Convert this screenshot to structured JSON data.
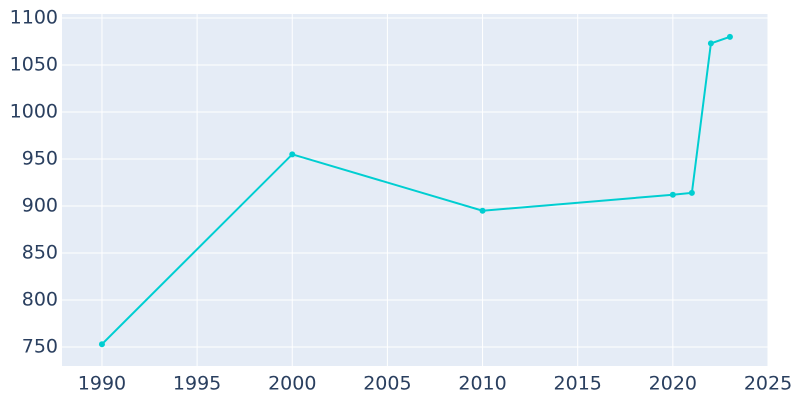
{
  "chart_data": {
    "type": "line",
    "x": [
      1990,
      2000,
      2010,
      2020,
      2021,
      2022,
      2023
    ],
    "series": [
      {
        "color": "#00ced1",
        "values": [
          753,
          955,
          895,
          912,
          914,
          1073,
          1080
        ]
      }
    ],
    "xlim": [
      1987.9,
      2025
    ],
    "xticks": [
      1990,
      1995,
      2000,
      2005,
      2010,
      2015,
      2020,
      2025
    ],
    "ylim": [
      729.8,
      1104.3
    ],
    "yticks": [
      750,
      800,
      850,
      900,
      950,
      1000,
      1050,
      1100
    ],
    "grid": true
  }
}
